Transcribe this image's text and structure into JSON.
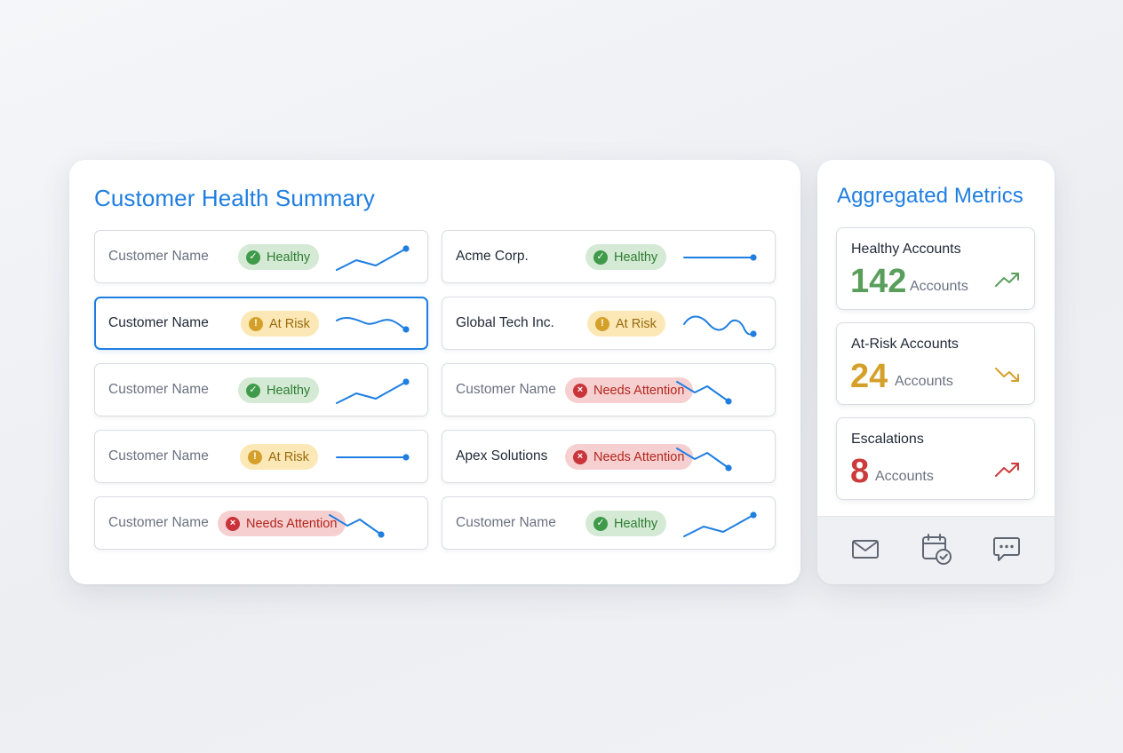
{
  "summary": {
    "title": "Customer Health Summary",
    "rows": [
      {
        "name": "Customer Name",
        "placeholder": true,
        "status": "Healthy",
        "status_type": "healthy",
        "trend": "up",
        "selected": false
      },
      {
        "name": "Acme Corp.",
        "placeholder": false,
        "status": "Healthy",
        "status_type": "healthy",
        "trend": "flat",
        "selected": false
      },
      {
        "name": "Customer Name",
        "placeholder": false,
        "status": "At Risk",
        "status_type": "atrisk",
        "trend": "wave-down",
        "selected": true
      },
      {
        "name": "Global Tech Inc.",
        "placeholder": false,
        "status": "At Risk",
        "status_type": "atrisk",
        "trend": "wave",
        "selected": false
      },
      {
        "name": "Customer Name",
        "placeholder": true,
        "status": "Healthy",
        "status_type": "healthy",
        "trend": "up",
        "selected": false
      },
      {
        "name": "Customer Name",
        "placeholder": true,
        "status": "Needs Attention",
        "status_type": "needs",
        "trend": "down",
        "selected": false
      },
      {
        "name": "Customer Name",
        "placeholder": true,
        "status": "At Risk",
        "status_type": "atrisk",
        "trend": "flat",
        "selected": false
      },
      {
        "name": "Apex Solutions",
        "placeholder": false,
        "status": "Needs Attention",
        "status_type": "needs",
        "trend": "down",
        "selected": false
      },
      {
        "name": "Customer Name",
        "placeholder": true,
        "status": "Needs Attention",
        "status_type": "needs",
        "trend": "down",
        "selected": false
      },
      {
        "name": "Customer Name",
        "placeholder": true,
        "status": "Healthy",
        "status_type": "healthy",
        "trend": "up",
        "selected": false
      }
    ]
  },
  "metrics": {
    "title": "Aggregated Metrics",
    "cards": [
      {
        "label": "Healthy Accounts",
        "value": "142",
        "unit": "Accounts",
        "color": "#5a9e5c",
        "trend": "up"
      },
      {
        "label": "At-Risk Accounts",
        "value": "24",
        "unit": "Accounts",
        "color": "#d4a02a",
        "trend": "down"
      },
      {
        "label": "Escalations",
        "value": "8",
        "unit": "Accounts",
        "color": "#cc3b3b",
        "trend": "up"
      }
    ]
  },
  "actions": [
    {
      "icon": "mail-icon"
    },
    {
      "icon": "calendar-check-icon"
    },
    {
      "icon": "chat-icon"
    }
  ],
  "colors": {
    "accent": "#1f7ee0",
    "spark": "#1f7ee0"
  }
}
